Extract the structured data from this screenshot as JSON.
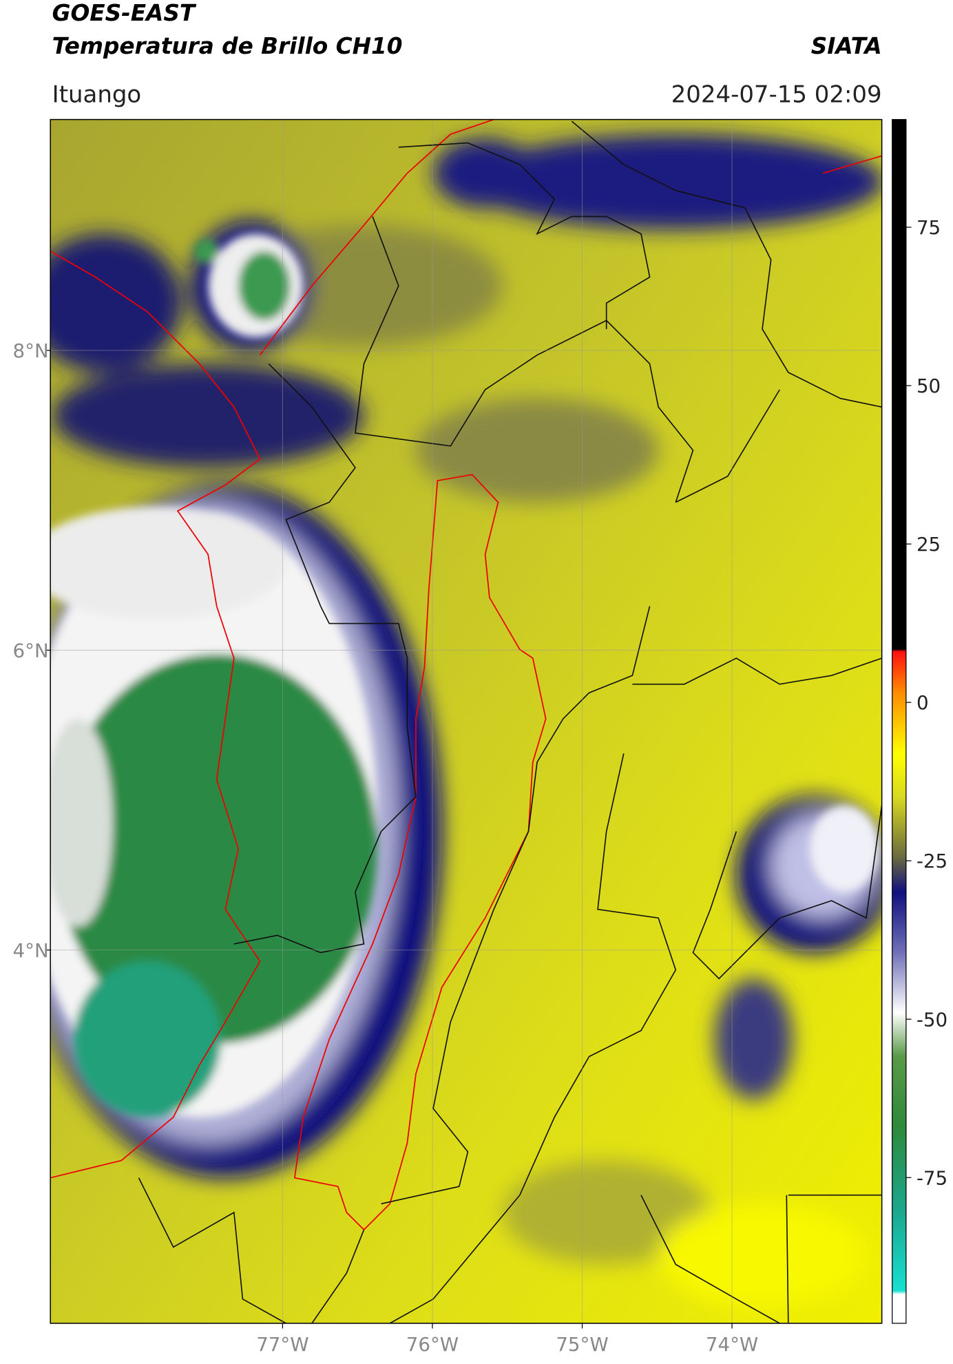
{
  "header": {
    "title_line1": "GOES-EAST",
    "title_line2": "Temperatura de Brillo CH10",
    "brand": "SIATA",
    "location": "Ituango",
    "datetime": "2024-07-15 02:09"
  },
  "map": {
    "xlim": [
      -78.55,
      -73.0
    ],
    "ylim": [
      1.51,
      9.54
    ],
    "xticks": [
      {
        "value": -77,
        "label": "77°W"
      },
      {
        "value": -76,
        "label": "76°W"
      },
      {
        "value": -75,
        "label": "75°W"
      },
      {
        "value": -74,
        "label": "74°W"
      }
    ],
    "yticks": [
      {
        "value": 8,
        "label": "8°N"
      },
      {
        "value": 6,
        "label": "6°N"
      },
      {
        "value": 4,
        "label": "4°N"
      }
    ]
  },
  "colorbar": {
    "lim": [
      -98,
      92
    ],
    "ticks": [
      75,
      50,
      25,
      0,
      -25,
      -50,
      -75
    ]
  }
}
